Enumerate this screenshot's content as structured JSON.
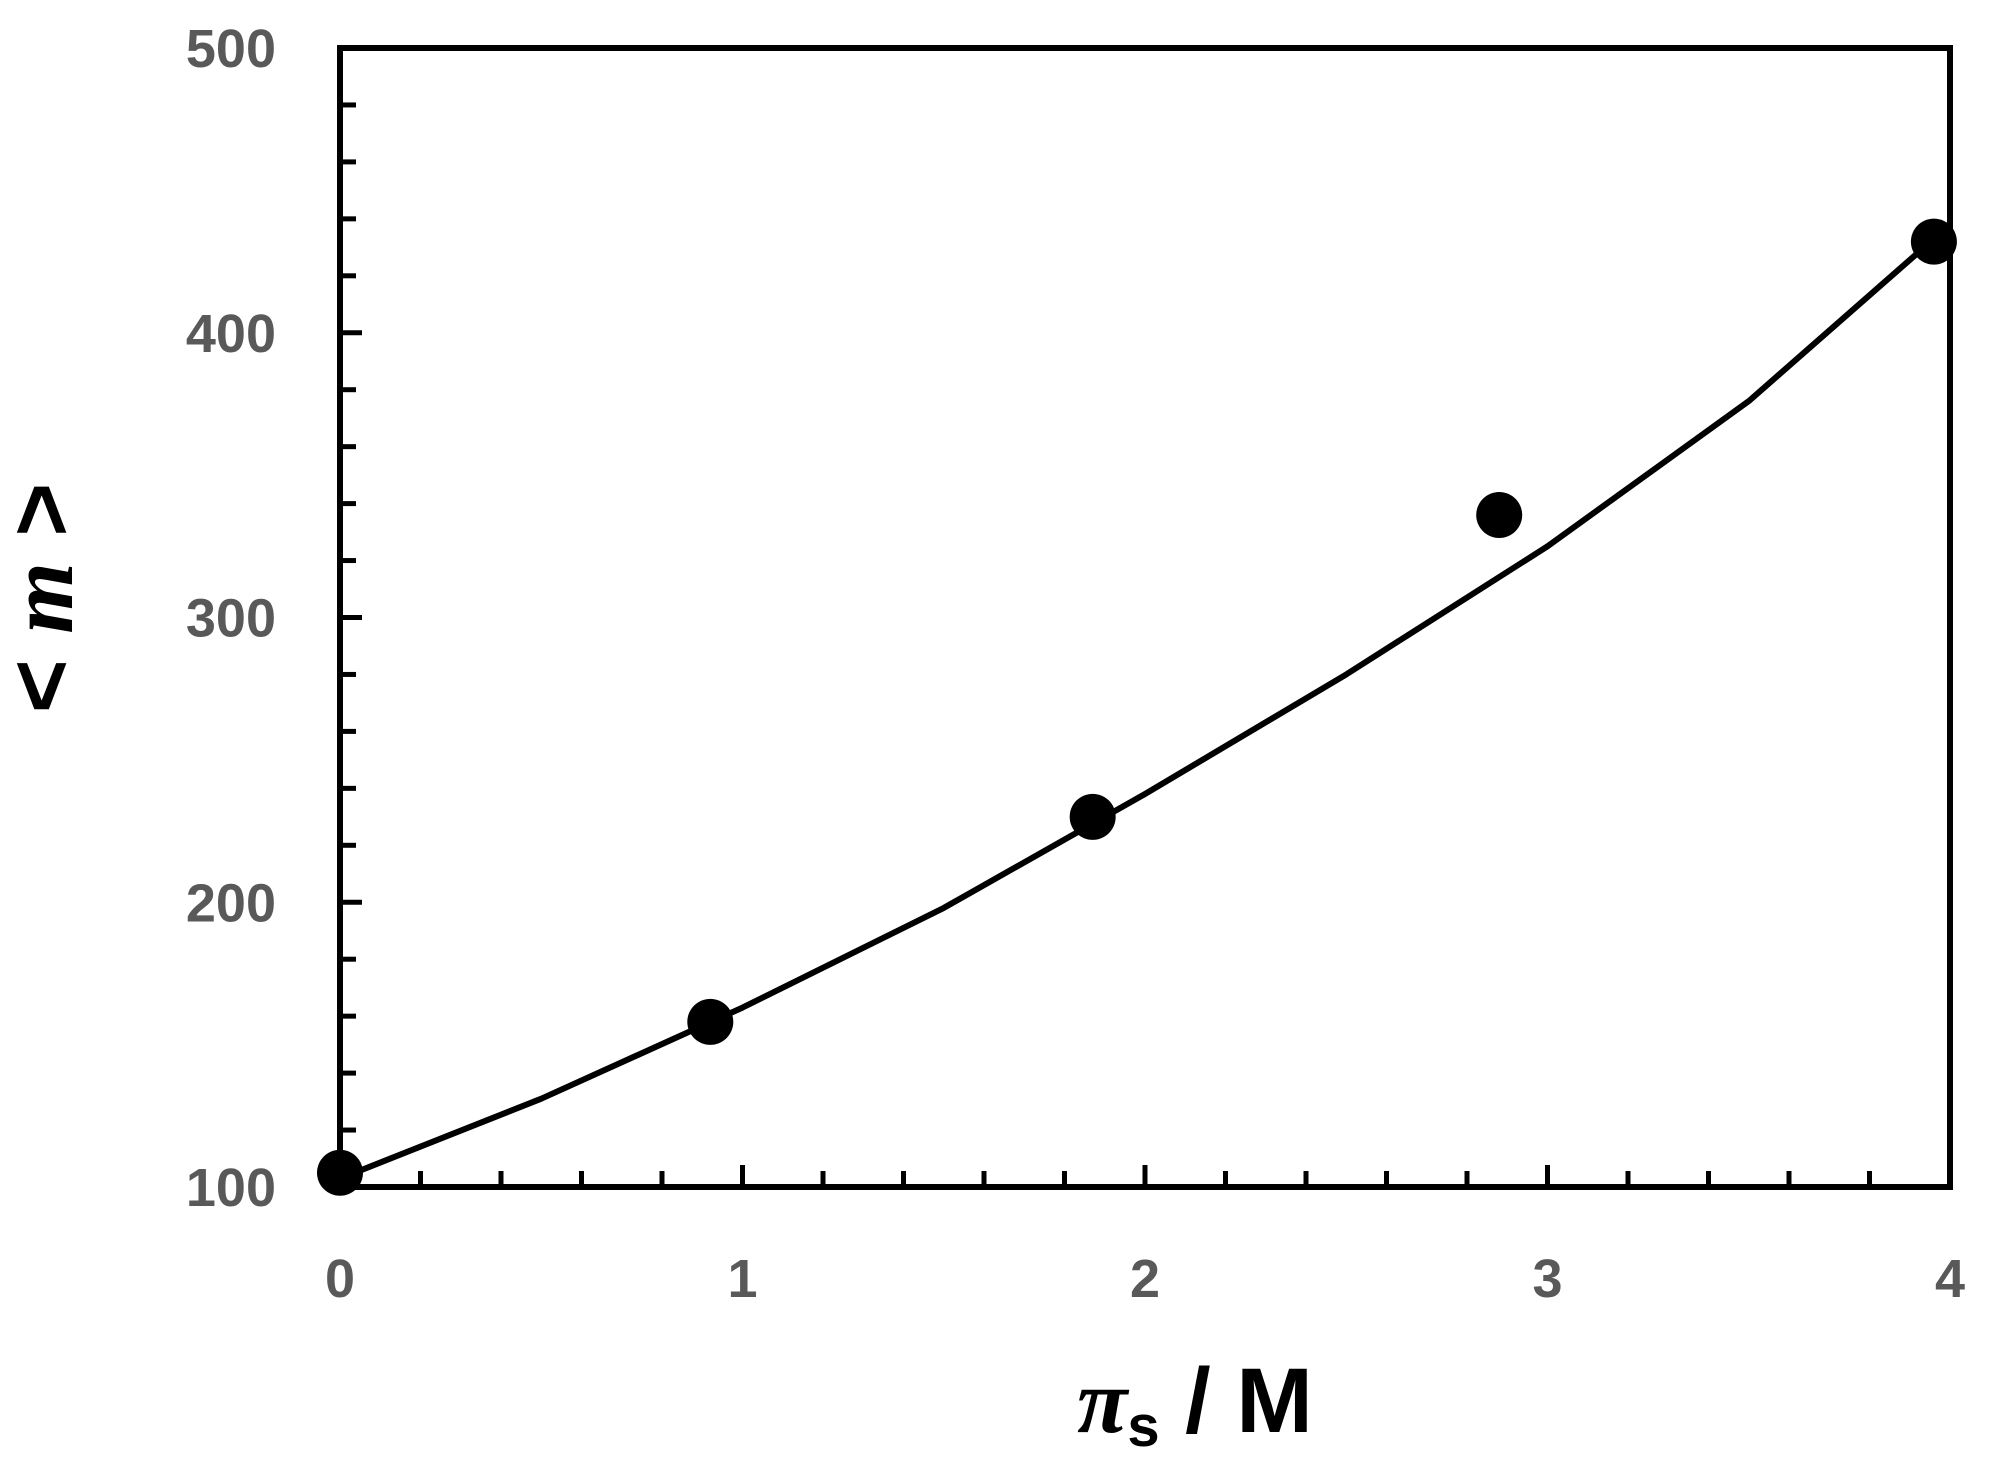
{
  "chart_data": {
    "type": "scatter",
    "title": "",
    "xlabel": {
      "symbol": "π",
      "subscript": "s",
      "rest": " / M"
    },
    "ylabel": {
      "left": "< ",
      "italic": "m",
      "right": " >"
    },
    "xlim": [
      0,
      4
    ],
    "ylim": [
      100,
      500
    ],
    "x_ticks": [
      0,
      1,
      2,
      3,
      4
    ],
    "y_ticks": [
      100,
      200,
      300,
      400,
      500
    ],
    "x_minor_step": 0.2,
    "y_minor_step": 20,
    "grid": false,
    "legend": "none",
    "series": [
      {
        "kind": "points",
        "x": [
          0,
          0.92,
          1.87,
          2.88,
          3.96
        ],
        "y": [
          105,
          158,
          230,
          336,
          432
        ]
      },
      {
        "kind": "line",
        "x": [
          0,
          0.5,
          1.0,
          1.5,
          2.0,
          2.5,
          3.0,
          3.5,
          3.96
        ],
        "y": [
          103,
          131,
          163,
          198,
          238,
          280,
          325,
          376,
          433
        ]
      }
    ],
    "colors": {
      "marks": "#000000",
      "tick_labels": "#595959"
    }
  }
}
